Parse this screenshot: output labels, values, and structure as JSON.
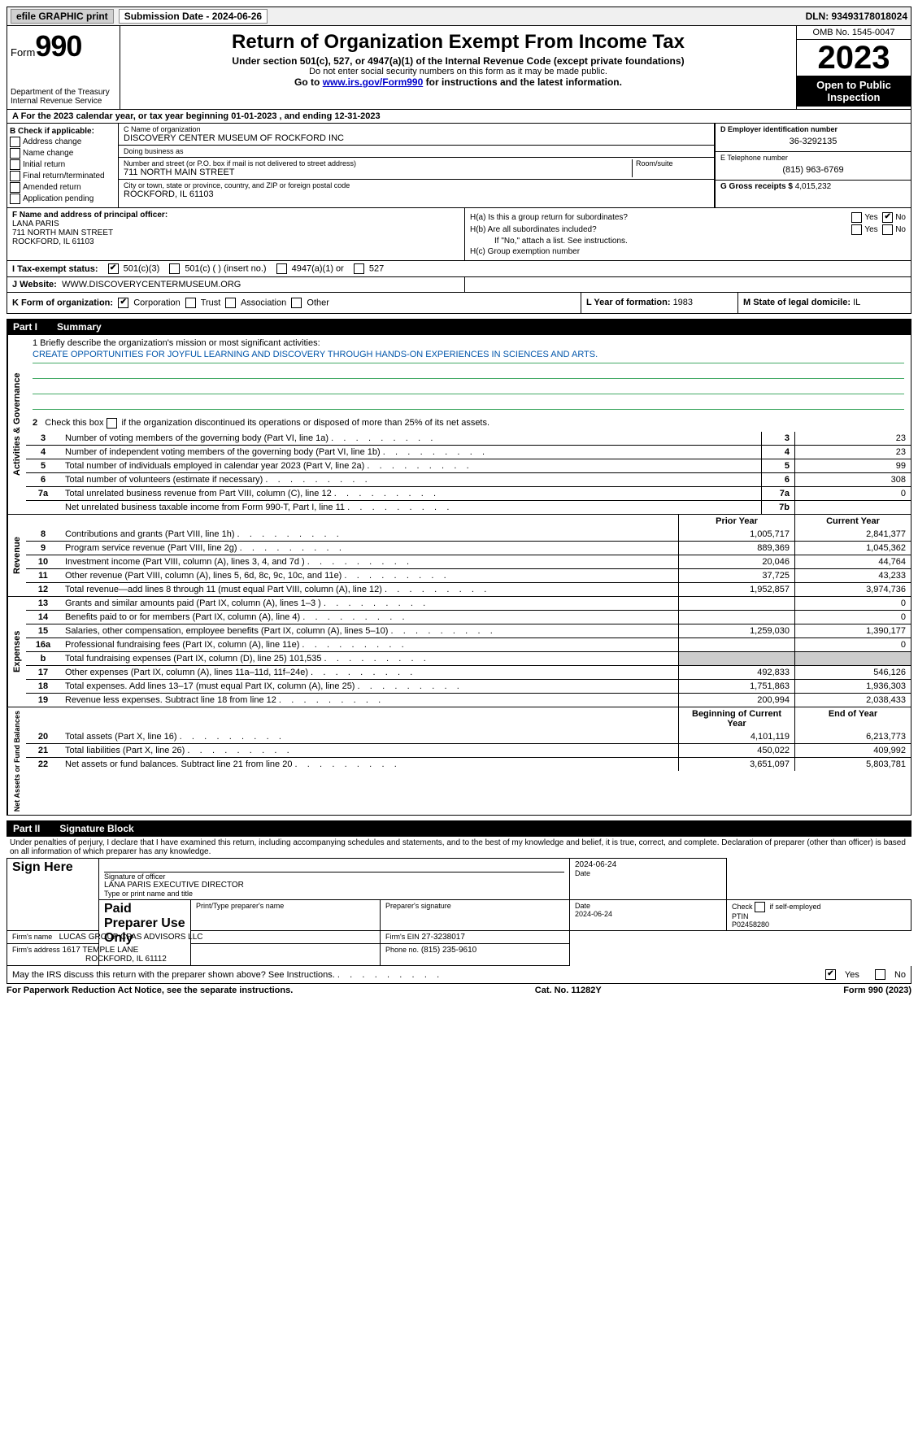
{
  "topbar": {
    "efile": "efile GRAPHIC print",
    "submission": "Submission Date - 2024-06-26",
    "dln": "DLN: 93493178018024"
  },
  "header": {
    "form_prefix": "Form",
    "form_number": "990",
    "dept": "Department of the Treasury\nInternal Revenue Service",
    "title": "Return of Organization Exempt From Income Tax",
    "sub1": "Under section 501(c), 527, or 4947(a)(1) of the Internal Revenue Code (except private foundations)",
    "sub2": "Do not enter social security numbers on this form as it may be made public.",
    "sub3_pre": "Go to ",
    "sub3_link": "www.irs.gov/Form990",
    "sub3_post": " for instructions and the latest information.",
    "omb": "OMB No. 1545-0047",
    "year": "2023",
    "open": "Open to Public Inspection"
  },
  "rowA": "A For the 2023 calendar year, or tax year beginning 01-01-2023   , and ending 12-31-2023",
  "B": {
    "label": "B Check if applicable:",
    "items": [
      "Address change",
      "Name change",
      "Initial return",
      "Final return/terminated",
      "Amended return",
      "Application pending"
    ]
  },
  "C": {
    "name_lbl": "C Name of organization",
    "name": "DISCOVERY CENTER MUSEUM OF ROCKFORD INC",
    "dba_lbl": "Doing business as",
    "dba": "",
    "addr_lbl": "Number and street (or P.O. box if mail is not delivered to street address)",
    "addr": "711 NORTH MAIN STREET",
    "room_lbl": "Room/suite",
    "city_lbl": "City or town, state or province, country, and ZIP or foreign postal code",
    "city": "ROCKFORD, IL  61103"
  },
  "D": {
    "lbl": "D Employer identification number",
    "val": "36-3292135"
  },
  "E": {
    "lbl": "E Telephone number",
    "val": "(815) 963-6769"
  },
  "G": {
    "lbl": "G Gross receipts $ ",
    "val": "4,015,232"
  },
  "F": {
    "lbl": "F  Name and address of principal officer:",
    "name": "LANA PARIS",
    "addr1": "711 NORTH MAIN STREET",
    "addr2": "ROCKFORD, IL  61103"
  },
  "H": {
    "a": "H(a)  Is this a group return for subordinates?",
    "b": "H(b)  Are all subordinates included?",
    "b_note": "If \"No,\" attach a list. See instructions.",
    "c": "H(c)  Group exemption number",
    "yes": "Yes",
    "no": "No"
  },
  "I": {
    "lbl": "I   Tax-exempt status:",
    "opt1": "501(c)(3)",
    "opt2": "501(c) (  ) (insert no.)",
    "opt3": "4947(a)(1) or",
    "opt4": "527"
  },
  "J": {
    "lbl": "J   Website:",
    "val": "WWW.DISCOVERYCENTERMUSEUM.ORG"
  },
  "K": {
    "lbl": "K Form of organization:",
    "opts": [
      "Corporation",
      "Trust",
      "Association",
      "Other"
    ]
  },
  "L": {
    "lbl": "L Year of formation: ",
    "val": "1983"
  },
  "M": {
    "lbl": "M State of legal domicile: ",
    "val": "IL"
  },
  "parts": {
    "p1": "Part I",
    "p1_title": "Summary",
    "p2": "Part II",
    "p2_title": "Signature Block"
  },
  "summary": {
    "line1_lbl": "1  Briefly describe the organization's mission or most significant activities:",
    "mission": "CREATE OPPORTUNITIES FOR JOYFUL LEARNING AND DISCOVERY THROUGH HANDS-ON EXPERIENCES IN SCIENCES AND ARTS.",
    "line2": "2    Check this box          if the organization discontinued its operations or disposed of more than 25% of its net assets.",
    "rows_gov": [
      {
        "n": "3",
        "t": "Number of voting members of the governing body (Part VI, line 1a)",
        "k": "3",
        "v": "23"
      },
      {
        "n": "4",
        "t": "Number of independent voting members of the governing body (Part VI, line 1b)",
        "k": "4",
        "v": "23"
      },
      {
        "n": "5",
        "t": "Total number of individuals employed in calendar year 2023 (Part V, line 2a)",
        "k": "5",
        "v": "99"
      },
      {
        "n": "6",
        "t": "Total number of volunteers (estimate if necessary)",
        "k": "6",
        "v": "308"
      },
      {
        "n": "7a",
        "t": "Total unrelated business revenue from Part VIII, column (C), line 12",
        "k": "7a",
        "v": "0"
      },
      {
        "n": "",
        "t": "Net unrelated business taxable income from Form 990-T, Part I, line 11",
        "k": "7b",
        "v": ""
      }
    ],
    "prior_hdr": "Prior Year",
    "curr_hdr": "Current Year",
    "rows_rev": [
      {
        "n": "8",
        "t": "Contributions and grants (Part VIII, line 1h)",
        "p": "1,005,717",
        "c": "2,841,377"
      },
      {
        "n": "9",
        "t": "Program service revenue (Part VIII, line 2g)",
        "p": "889,369",
        "c": "1,045,362"
      },
      {
        "n": "10",
        "t": "Investment income (Part VIII, column (A), lines 3, 4, and 7d )",
        "p": "20,046",
        "c": "44,764"
      },
      {
        "n": "11",
        "t": "Other revenue (Part VIII, column (A), lines 5, 6d, 8c, 9c, 10c, and 11e)",
        "p": "37,725",
        "c": "43,233"
      },
      {
        "n": "12",
        "t": "Total revenue—add lines 8 through 11 (must equal Part VIII, column (A), line 12)",
        "p": "1,952,857",
        "c": "3,974,736"
      }
    ],
    "rows_exp": [
      {
        "n": "13",
        "t": "Grants and similar amounts paid (Part IX, column (A), lines 1–3 )",
        "p": "",
        "c": "0"
      },
      {
        "n": "14",
        "t": "Benefits paid to or for members (Part IX, column (A), line 4)",
        "p": "",
        "c": "0"
      },
      {
        "n": "15",
        "t": "Salaries, other compensation, employee benefits (Part IX, column (A), lines 5–10)",
        "p": "1,259,030",
        "c": "1,390,177"
      },
      {
        "n": "16a",
        "t": "Professional fundraising fees (Part IX, column (A), line 11e)",
        "p": "",
        "c": "0"
      },
      {
        "n": "b",
        "t": "Total fundraising expenses (Part IX, column (D), line 25) 101,535",
        "p": "shade",
        "c": "shade"
      },
      {
        "n": "17",
        "t": "Other expenses (Part IX, column (A), lines 11a–11d, 11f–24e)",
        "p": "492,833",
        "c": "546,126"
      },
      {
        "n": "18",
        "t": "Total expenses. Add lines 13–17 (must equal Part IX, column (A), line 25)",
        "p": "1,751,863",
        "c": "1,936,303"
      },
      {
        "n": "19",
        "t": "Revenue less expenses. Subtract line 18 from line 12",
        "p": "200,994",
        "c": "2,038,433"
      }
    ],
    "beg_hdr": "Beginning of Current Year",
    "end_hdr": "End of Year",
    "rows_net": [
      {
        "n": "20",
        "t": "Total assets (Part X, line 16)",
        "p": "4,101,119",
        "c": "6,213,773"
      },
      {
        "n": "21",
        "t": "Total liabilities (Part X, line 26)",
        "p": "450,022",
        "c": "409,992"
      },
      {
        "n": "22",
        "t": "Net assets or fund balances. Subtract line 21 from line 20",
        "p": "3,651,097",
        "c": "5,803,781"
      }
    ],
    "vtabs": {
      "gov": "Activities & Governance",
      "rev": "Revenue",
      "exp": "Expenses",
      "net": "Net Assets or Fund Balances"
    }
  },
  "sig": {
    "decl": "Under penalties of perjury, I declare that I have examined this return, including accompanying schedules and statements, and to the best of my knowledge and belief, it is true, correct, and complete. Declaration of preparer (other than officer) is based on all information of which preparer has any knowledge.",
    "sign_here": "Sign Here",
    "sig_officer_lbl": "Signature of officer",
    "officer_name": "LANA PARIS  EXECUTIVE DIRECTOR",
    "type_name_lbl": "Type or print name and title",
    "date_lbl": "Date",
    "date1": "2024-06-24",
    "paid": "Paid Preparer Use Only",
    "prep_name_lbl": "Print/Type preparer's name",
    "prep_sig_lbl": "Preparer's signature",
    "date2_lbl": "Date",
    "date2": "2024-06-24",
    "check_self": "Check         if self-employed",
    "ptin_lbl": "PTIN",
    "ptin": "P02458280",
    "firm_name_lbl": "Firm's name",
    "firm_name": "LUCAS GROUP CPAS ADVISORS LLC",
    "firm_ein_lbl": "Firm's EIN",
    "firm_ein": "27-3238017",
    "firm_addr_lbl": "Firm's address",
    "firm_addr1": "1617 TEMPLE LANE",
    "firm_addr2": "ROCKFORD, IL  61112",
    "phone_lbl": "Phone no.",
    "phone": "(815) 235-9610"
  },
  "discuss": {
    "q": "May the IRS discuss this return with the preparer shown above? See Instructions.",
    "yes": "Yes",
    "no": "No"
  },
  "footer": {
    "left": "For Paperwork Reduction Act Notice, see the separate instructions.",
    "mid": "Cat. No. 11282Y",
    "right_pre": "Form ",
    "right_form": "990",
    "right_post": " (2023)"
  }
}
